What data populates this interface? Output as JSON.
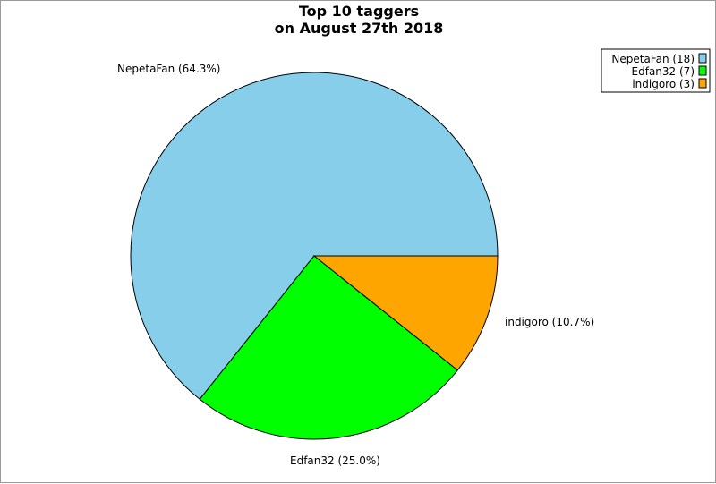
{
  "chart_data": {
    "type": "pie",
    "title": "Top 10 taggers",
    "subtitle": "on August 27th 2018",
    "legend_position": "top-right",
    "slices": [
      {
        "name": "NepetaFan",
        "value": 18,
        "percent_label": "NepetaFan (64.3%)",
        "legend_label": "NepetaFan (18)",
        "color": "#87ceeb"
      },
      {
        "name": "Edfan32",
        "value": 7,
        "percent_label": "Edfan32 (25.0%)",
        "legend_label": "Edfan32 (7)",
        "color": "#00ff00"
      },
      {
        "name": "indigoro",
        "value": 3,
        "percent_label": "indigoro (10.7%)",
        "legend_label": "indigoro (3)",
        "color": "#ffa500"
      }
    ]
  }
}
